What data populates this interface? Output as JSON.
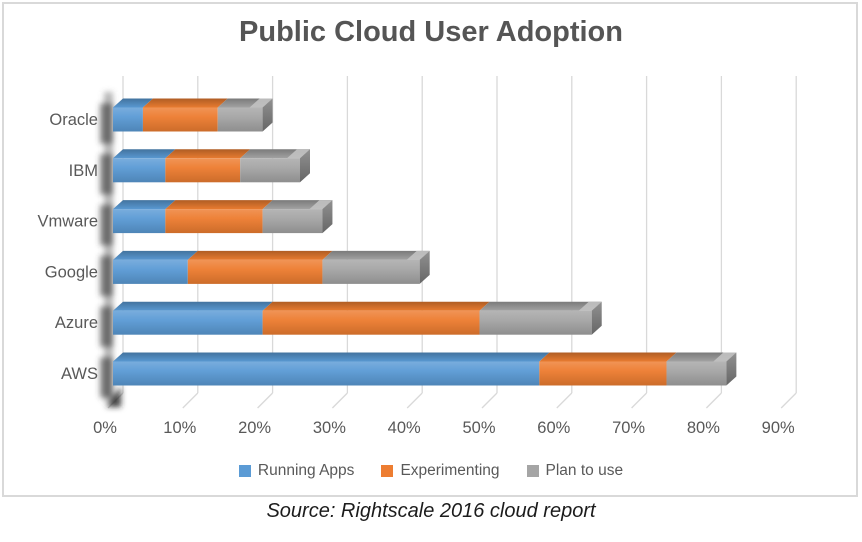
{
  "title": "Public Cloud User Adoption",
  "source_note": "Source: Rightscale 2016 cloud report",
  "colors": {
    "running_apps": "#5B9BD5",
    "experimenting": "#ED7D31",
    "plan_to_use": "#A5A5A5",
    "gridline": "#D9D9D9",
    "chart_border": "#D9D9D9",
    "title_text": "#555555",
    "axis_text": "#595959",
    "source_text": "#1C1C1C",
    "background": "#FFFFFF"
  },
  "legend": {
    "items": [
      {
        "label": "Running Apps",
        "color": "#5B9BD5"
      },
      {
        "label": "Experimenting",
        "color": "#ED7D31"
      },
      {
        "label": "Plan to use",
        "color": "#A5A5A5"
      }
    ]
  },
  "chart_data": {
    "type": "bar",
    "orientation": "horizontal",
    "stacked": true,
    "style": "3d",
    "title": "Public Cloud User Adoption",
    "categories": [
      "Oracle",
      "IBM",
      "Vmware",
      "Google",
      "Azure",
      "AWS"
    ],
    "series": [
      {
        "name": "Running Apps",
        "color": "#5B9BD5",
        "values": [
          4,
          7,
          7,
          10,
          20,
          57
        ]
      },
      {
        "name": "Experimenting",
        "color": "#ED7D31",
        "values": [
          10,
          10,
          13,
          18,
          29,
          17
        ]
      },
      {
        "name": "Plan to use",
        "color": "#A5A5A5",
        "values": [
          6,
          8,
          8,
          13,
          15,
          8
        ]
      }
    ],
    "totals": [
      20,
      25,
      28,
      41,
      64,
      82
    ],
    "xlabel": "",
    "ylabel": "",
    "xlim": [
      0,
      90
    ],
    "x_tick_step": 10,
    "x_ticks": [
      "0%",
      "10%",
      "20%",
      "30%",
      "40%",
      "50%",
      "60%",
      "70%",
      "80%",
      "90%"
    ],
    "grid": true,
    "legend_position": "bottom"
  }
}
